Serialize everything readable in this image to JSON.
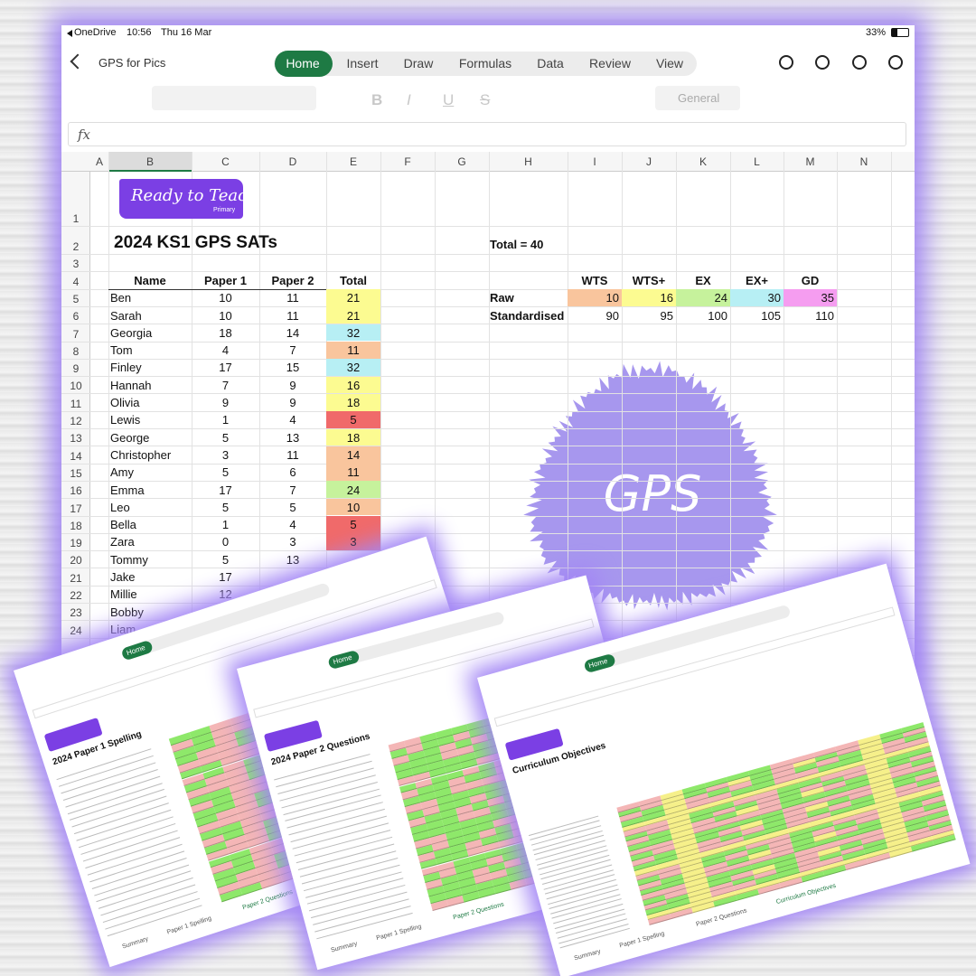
{
  "status_bar": {
    "app": "OneDrive",
    "time": "10:56",
    "date": "Thu 16 Mar",
    "battery": "33%"
  },
  "toolbar": {
    "file_name": "GPS for Pics",
    "tabs": [
      "Home",
      "Insert",
      "Draw",
      "Formulas",
      "Data",
      "Review",
      "View"
    ],
    "format_icons": [
      "B",
      "I",
      "U",
      "S"
    ],
    "number_format": "General"
  },
  "formula_bar": {
    "label": "fx"
  },
  "sheet": {
    "columns": [
      "A",
      "B",
      "C",
      "D",
      "E",
      "F",
      "G",
      "H",
      "I",
      "J",
      "K",
      "L",
      "M",
      "N"
    ],
    "row_numbers": [
      1,
      2,
      3,
      4,
      5,
      6,
      7,
      8,
      9,
      10,
      11,
      12,
      13,
      14,
      15,
      16,
      17,
      18,
      19,
      20,
      21,
      22,
      23,
      24
    ],
    "logo": {
      "text": "Ready to Teach",
      "subtext": "Primary"
    },
    "title": "2024 KS1 GPS SATs",
    "headers": [
      "Name",
      "Paper 1",
      "Paper 2",
      "Total"
    ],
    "students": [
      {
        "name": "Ben",
        "paper1": 10,
        "paper2": 11,
        "total": 21
      },
      {
        "name": "Sarah",
        "paper1": 10,
        "paper2": 11,
        "total": 21
      },
      {
        "name": "Georgia",
        "paper1": 18,
        "paper2": 14,
        "total": 32
      },
      {
        "name": "Tom",
        "paper1": 4,
        "paper2": 7,
        "total": 11
      },
      {
        "name": "Finley",
        "paper1": 17,
        "paper2": 15,
        "total": 32
      },
      {
        "name": "Hannah",
        "paper1": 7,
        "paper2": 9,
        "total": 16
      },
      {
        "name": "Olivia",
        "paper1": 9,
        "paper2": 9,
        "total": 18
      },
      {
        "name": "Lewis",
        "paper1": 1,
        "paper2": 4,
        "total": 5
      },
      {
        "name": "George",
        "paper1": 5,
        "paper2": 13,
        "total": 18
      },
      {
        "name": "Christopher",
        "paper1": 3,
        "paper2": 11,
        "total": 14
      },
      {
        "name": "Amy",
        "paper1": 5,
        "paper2": 6,
        "total": 11
      },
      {
        "name": "Emma",
        "paper1": 17,
        "paper2": 7,
        "total": 24
      },
      {
        "name": "Leo",
        "paper1": 5,
        "paper2": 5,
        "total": 10
      },
      {
        "name": "Bella",
        "paper1": 1,
        "paper2": 4,
        "total": 5
      },
      {
        "name": "Zara",
        "paper1": 0,
        "paper2": 3,
        "total": 3
      },
      {
        "name": "Tommy",
        "paper1": 5,
        "paper2": 13,
        "total": null
      },
      {
        "name": "Jake",
        "paper1": 17,
        "paper2": null,
        "total": null
      },
      {
        "name": "Millie",
        "paper1": 12,
        "paper2": null,
        "total": null
      },
      {
        "name": "Bobby",
        "paper1": null,
        "paper2": null,
        "total": null
      },
      {
        "name": "Liam",
        "paper1": null,
        "paper2": null,
        "total": null
      }
    ],
    "total_note": "Total = 40",
    "bands": {
      "labels": [
        "WTS",
        "WTS+",
        "EX",
        "EX+",
        "GD"
      ],
      "row_labels": [
        "Raw",
        "Standardised"
      ],
      "raw": [
        10,
        16,
        24,
        30,
        35
      ],
      "standardised": [
        90,
        95,
        100,
        105,
        110
      ],
      "colors": [
        "#f9c59d",
        "#fcfb91",
        "#c6f29c",
        "#b7eff4",
        "#f59df0"
      ],
      "below_color": "#f06a6a"
    }
  },
  "badge": {
    "text": "GPS"
  },
  "thumbnails": [
    {
      "title": "2024 Paper 1 Spelling",
      "tab": "Home",
      "sheet_tabs": [
        "Summary",
        "Paper 1 Spelling",
        "Paper 2 Questions"
      ]
    },
    {
      "title": "2024 Paper 2 Questions",
      "tab": "Home",
      "sheet_tabs": [
        "Summary",
        "Paper 1 Spelling",
        "Paper 2 Questions"
      ]
    },
    {
      "title": "Curriculum Objectives",
      "tab": "Home",
      "sheet_tabs": [
        "Summary",
        "Paper 1 Spelling",
        "Paper 2 Questions",
        "Curriculum Objectives"
      ]
    }
  ]
}
